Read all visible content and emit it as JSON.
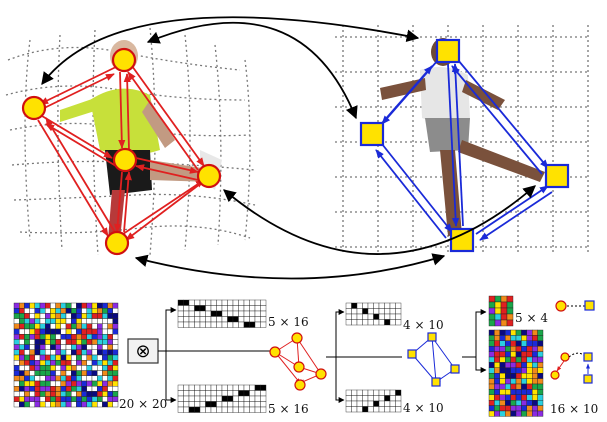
{
  "labels": {
    "matrix_size": "20 × 20",
    "operator": "⊗",
    "top_perm": "5 × 16",
    "bottom_perm": "5 × 16",
    "top_graph_perm": "4 × 10",
    "bottom_graph_perm": "4 × 10",
    "node_block": "5 × 4",
    "edge_block": "16 × 10"
  },
  "colors": {
    "source_edges": "#e02020",
    "target_edges": "#1a2ad8",
    "node_fill": "#ffe200",
    "node_stroke_source": "#d01010",
    "node_stroke_target": "#1a2ad8",
    "correspondence": "#000000",
    "grid_dashed": "#777777"
  },
  "icons": {
    "operator": "kronecker-product-icon"
  }
}
